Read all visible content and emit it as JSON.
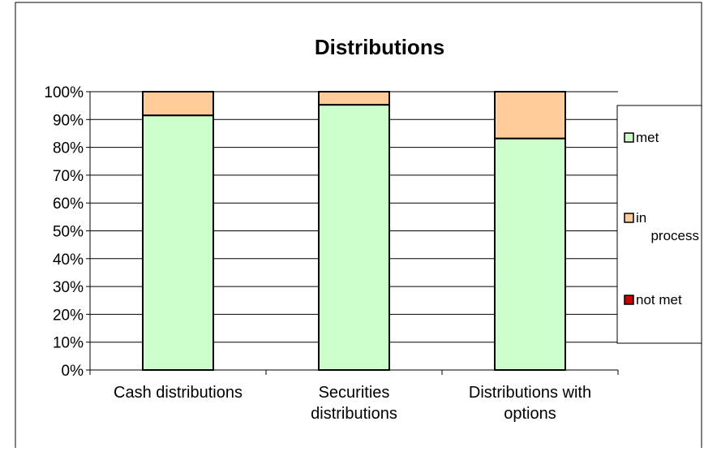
{
  "chart_data": {
    "type": "bar",
    "stacked": true,
    "percent": true,
    "title": "Distributions",
    "xlabel": "",
    "ylabel": "",
    "ylim": [
      0,
      100
    ],
    "y_ticks": [
      "0%",
      "10%",
      "20%",
      "30%",
      "40%",
      "50%",
      "60%",
      "70%",
      "80%",
      "90%",
      "100%"
    ],
    "categories": [
      [
        "Cash distributions"
      ],
      [
        "Securities",
        "distributions"
      ],
      [
        "Distributions with",
        "options"
      ]
    ],
    "series": [
      {
        "name": "met",
        "values": [
          91.5,
          95.3,
          83.2
        ],
        "color": "#ccffcc"
      },
      {
        "name": "in process",
        "values": [
          8.5,
          4.7,
          16.8
        ],
        "color": "#ffcc99"
      },
      {
        "name": "not met",
        "values": [
          0,
          0,
          0
        ],
        "color": "#cc0000"
      }
    ],
    "legend": {
      "position": "right",
      "entries": [
        {
          "lines": [
            "met"
          ]
        },
        {
          "lines": [
            "in",
            "process"
          ]
        },
        {
          "lines": [
            "not met"
          ]
        }
      ]
    },
    "grid": true
  }
}
